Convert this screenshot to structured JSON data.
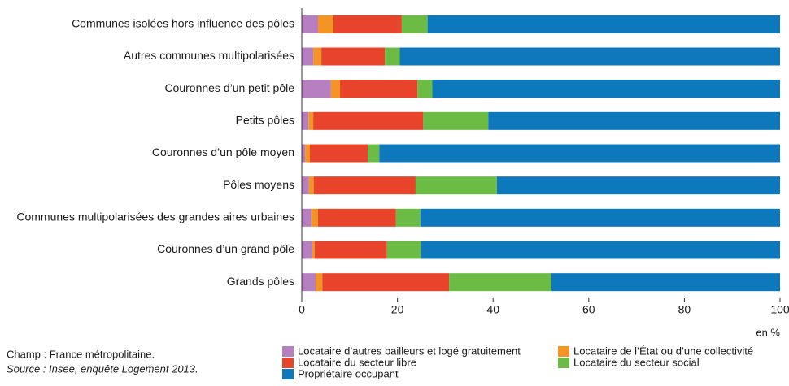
{
  "chart_data": {
    "type": "stacked-hbar",
    "categories": [
      "Communes isolées hors influence des pôles",
      "Autres communes multipolarisées",
      "Couronnes d’un petit pôle",
      "Petits pôles",
      "Couronnes d’un pôle moyen",
      "Pôles moyens",
      "Communes multipolarisées des grandes aires urbaines",
      "Couronnes d’un grand pôle",
      "Grands pôles"
    ],
    "series": [
      {
        "name": "Locataire d’autres bailleurs et logé gratuitement",
        "color": "#b57fc0",
        "values": [
          3.4,
          2.4,
          6.1,
          1.4,
          0.7,
          1.5,
          2.0,
          2.2,
          2.9
        ]
      },
      {
        "name": "Locataire de l’État ou d’une collectivité",
        "color": "#f39425",
        "values": [
          3.2,
          1.7,
          1.9,
          1.0,
          1.0,
          1.0,
          1.4,
          0.5,
          1.4
        ]
      },
      {
        "name": "Locataire du secteur libre",
        "color": "#e8432b",
        "values": [
          14.3,
          13.3,
          16.2,
          23.0,
          12.1,
          21.3,
          16.3,
          15.1,
          26.5
        ]
      },
      {
        "name": "Locataire du secteur social",
        "color": "#6cbb45",
        "values": [
          5.4,
          3.1,
          3.1,
          13.6,
          2.4,
          17.0,
          5.1,
          7.1,
          21.4
        ]
      },
      {
        "name": "Propriétaire occupant",
        "color": "#0e78bd",
        "values": [
          73.7,
          79.5,
          72.7,
          61.0,
          83.8,
          59.2,
          75.2,
          75.1,
          47.8
        ]
      }
    ],
    "xlim": [
      0,
      100
    ],
    "xticks": [
      0,
      20,
      40,
      60,
      80,
      100
    ],
    "xlabel": "en %",
    "notes": [
      "Champ : France métropolitaine.",
      "Source : Insee, enquête Logement 2013."
    ]
  }
}
